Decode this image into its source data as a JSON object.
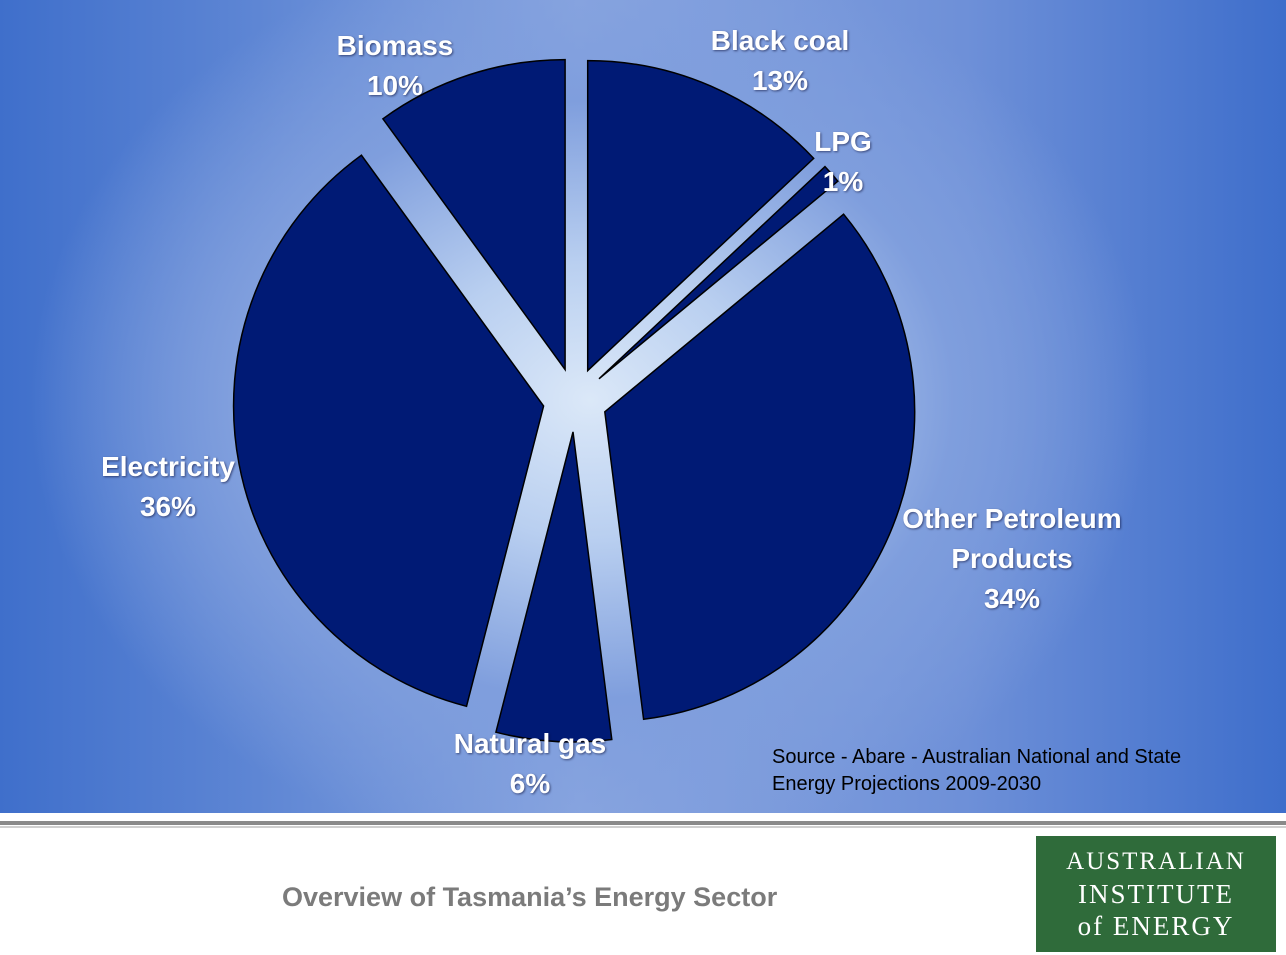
{
  "chart_data": {
    "type": "pie",
    "title": "",
    "slices": [
      {
        "name": "Black coal",
        "value": 13,
        "label_lines": [
          "Black coal",
          "13%"
        ]
      },
      {
        "name": "LPG",
        "value": 1,
        "label_lines": [
          "LPG",
          "1%"
        ]
      },
      {
        "name": "Other Petroleum Products",
        "value": 34,
        "label_lines": [
          "Other Petroleum",
          "Products",
          "34%"
        ]
      },
      {
        "name": "Natural gas",
        "value": 6,
        "label_lines": [
          "Natural gas",
          "6%"
        ]
      },
      {
        "name": "Electricity",
        "value": 36,
        "label_lines": [
          "Electricity",
          "36%"
        ]
      },
      {
        "name": "Biomass",
        "value": 10,
        "label_lines": [
          "Biomass",
          "10%"
        ]
      }
    ],
    "legend": "none",
    "slice_color": "#001a75"
  },
  "source_note": {
    "line1": "Source - Abare - Australian National and State",
    "line2": "Energy Projections 2009-2030"
  },
  "footer": {
    "title": "Overview of Tasmania’s Energy Sector",
    "logo": {
      "line1": "AUSTRALIAN",
      "line2": "INSTITUTE",
      "line3": "of ENERGY"
    }
  }
}
